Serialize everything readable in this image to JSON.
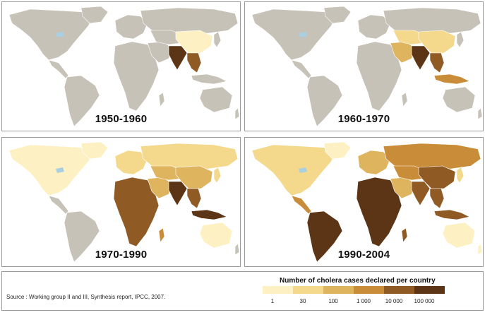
{
  "panels": [
    {
      "period": "1950-1960"
    },
    {
      "period": "1960-1970"
    },
    {
      "period": "1970-1990"
    },
    {
      "period": "1990-2004"
    }
  ],
  "legend": {
    "title": "Number of cholera cases declared per country",
    "ticks": [
      "1",
      "30",
      "100",
      "1 000",
      "10 000",
      "100 000"
    ],
    "colors": [
      "#fdf1c4",
      "#f4d98d",
      "#dfb45f",
      "#c98c38",
      "#8f5a24",
      "#5c3416"
    ]
  },
  "source": "Source : Working group II and III, Synthesis report, IPCC, 2007.",
  "colors": {
    "land": "#c7c2b8",
    "ocean": "#ffffff",
    "border": "#ffffff",
    "lake": "#a9cfe3"
  }
}
